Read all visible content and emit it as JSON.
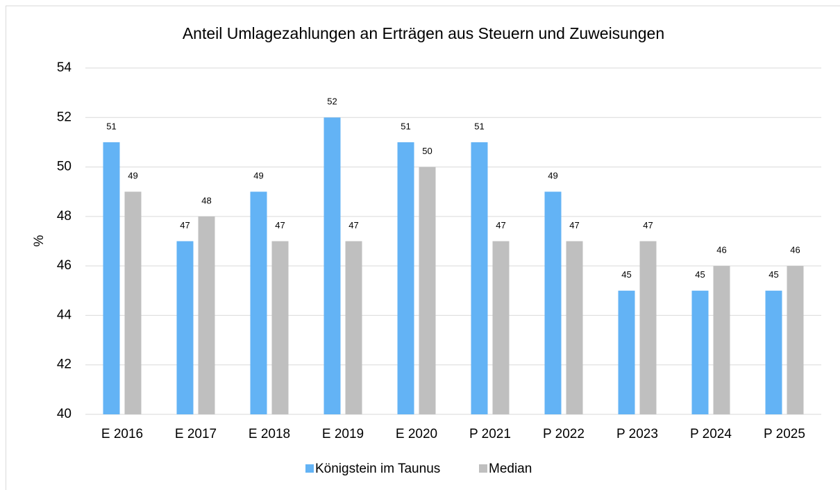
{
  "chart_data": {
    "type": "bar",
    "title": "Anteil Umlagezahlungen an Erträgen aus Steuern und Zuweisungen",
    "y_label": "%",
    "categories": [
      "E 2016",
      "E 2017",
      "E 2018",
      "E 2019",
      "E 2020",
      "P 2021",
      "P 2022",
      "P 2023",
      "P 2024",
      "P 2025"
    ],
    "series": [
      {
        "name": "Königstein im Taunus",
        "color": "#63b3f5",
        "values": [
          51,
          47,
          49,
          52,
          51,
          51,
          49,
          45,
          45,
          45
        ]
      },
      {
        "name": "Median",
        "color": "#bfbfbf",
        "values": [
          49,
          48,
          47,
          47,
          50,
          47,
          47,
          47,
          46,
          46
        ]
      }
    ],
    "ylim": [
      40,
      54
    ],
    "yticks": [
      40,
      42,
      44,
      46,
      48,
      50,
      52,
      54
    ],
    "grid": true,
    "legend": "bottom"
  }
}
